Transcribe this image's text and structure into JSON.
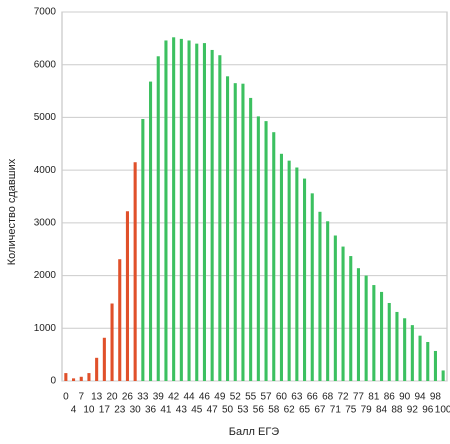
{
  "chart_data": {
    "type": "bar",
    "x_label": "Балл ЕГЭ",
    "y_label": "Количество сдавших",
    "categories": [
      "0",
      "4",
      "7",
      "10",
      "13",
      "17",
      "20",
      "23",
      "26",
      "30",
      "33",
      "36",
      "39",
      "41",
      "42",
      "43",
      "44",
      "45",
      "46",
      "47",
      "49",
      "50",
      "52",
      "53",
      "55",
      "56",
      "57",
      "58",
      "60",
      "62",
      "63",
      "65",
      "66",
      "67",
      "68",
      "71",
      "72",
      "75",
      "77",
      "79",
      "81",
      "84",
      "86",
      "88",
      "90",
      "92",
      "94",
      "96",
      "98",
      "100"
    ],
    "values": [
      150,
      50,
      80,
      150,
      440,
      820,
      1470,
      2310,
      3220,
      4150,
      4970,
      5680,
      6160,
      6460,
      6520,
      6490,
      6460,
      6400,
      6410,
      6280,
      6180,
      5780,
      5650,
      5640,
      5370,
      5020,
      4930,
      4720,
      4310,
      4180,
      4050,
      3840,
      3560,
      3210,
      3030,
      2760,
      2550,
      2370,
      2140,
      2000,
      1820,
      1690,
      1480,
      1310,
      1190,
      1060,
      860,
      740,
      570,
      200
    ],
    "colors": [
      "#e0502a",
      "#e0502a",
      "#e0502a",
      "#e0502a",
      "#e0502a",
      "#e0502a",
      "#e0502a",
      "#e0502a",
      "#e0502a",
      "#e0502a",
      "#3cc060",
      "#3cc060",
      "#3cc060",
      "#3cc060",
      "#3cc060",
      "#3cc060",
      "#3cc060",
      "#3cc060",
      "#3cc060",
      "#3cc060",
      "#3cc060",
      "#3cc060",
      "#3cc060",
      "#3cc060",
      "#3cc060",
      "#3cc060",
      "#3cc060",
      "#3cc060",
      "#3cc060",
      "#3cc060",
      "#3cc060",
      "#3cc060",
      "#3cc060",
      "#3cc060",
      "#3cc060",
      "#3cc060",
      "#3cc060",
      "#3cc060",
      "#3cc060",
      "#3cc060",
      "#3cc060",
      "#3cc060",
      "#3cc060",
      "#3cc060",
      "#3cc060",
      "#3cc060",
      "#3cc060",
      "#3cc060",
      "#3cc060",
      "#3cc060"
    ],
    "ylim": [
      0,
      7000
    ],
    "yticks": [
      0,
      1000,
      2000,
      3000,
      4000,
      5000,
      6000,
      7000
    ],
    "grid": true
  }
}
